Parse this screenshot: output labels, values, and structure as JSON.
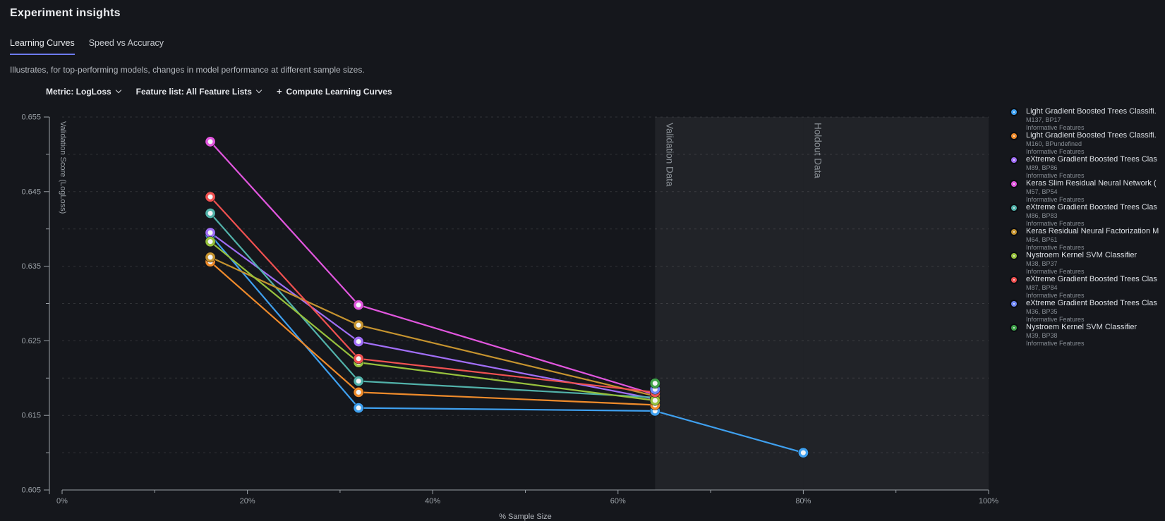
{
  "page": {
    "title": "Experiment insights"
  },
  "tabs": [
    {
      "label": "Learning Curves",
      "active": true
    },
    {
      "label": "Speed vs Accuracy",
      "active": false
    }
  ],
  "subtitle": "Illustrates, for top-performing models, changes in model performance at different sample sizes.",
  "controls": {
    "metric_label": "Metric: LogLoss",
    "feature_list_label": "Feature list: All Feature Lists",
    "compute_icon": "+",
    "compute_button": "Compute Learning Curves"
  },
  "chart_data": {
    "type": "line",
    "title": "",
    "xlabel": "% Sample Size",
    "ylabel": "Validation Score (LogLoss)",
    "xlim": [
      0,
      100
    ],
    "ylim": [
      0.605,
      0.655
    ],
    "grid": "horizontal dashed every 0.005",
    "legend_position": "right",
    "x_ticks_major": [
      0,
      20,
      40,
      60,
      80,
      100
    ],
    "x_tick_labels": [
      "0%",
      "20%",
      "40%",
      "60%",
      "80%",
      "100%"
    ],
    "x_ticks_minor": [
      10,
      30,
      50,
      70,
      90
    ],
    "y_ticks_major": [
      0.655,
      0.645,
      0.635,
      0.625,
      0.615,
      0.605
    ],
    "y_tick_labels": [
      "0.655",
      "0.645",
      "0.635",
      "0.625",
      "0.615",
      "0.605"
    ],
    "y_ticks_minor": [
      0.65,
      0.64,
      0.63,
      0.62,
      0.61
    ],
    "bands": [
      {
        "label": "Validation Data",
        "from": 64,
        "to": 80
      },
      {
        "label": "Holdout Data",
        "from": 80,
        "to": 100
      }
    ],
    "series": [
      {
        "name": "Light Gradient Boosted Trees Classifi.",
        "model_id": "M137, BP17",
        "feature_list": "Informative Features",
        "color": "#3fa0ef",
        "x": [
          16,
          32,
          64,
          80
        ],
        "y": [
          0.6392,
          0.616,
          0.6156,
          0.61
        ]
      },
      {
        "name": "Light Gradient Boosted Trees Classifi.",
        "model_id": "M160, BPundefined",
        "feature_list": "Informative Features",
        "color": "#ef8b2b",
        "x": [
          16,
          32,
          64
        ],
        "y": [
          0.6356,
          0.6181,
          0.6164
        ]
      },
      {
        "name": "eXtreme Gradient Boosted Trees Clas",
        "model_id": "M89, BP86",
        "feature_list": "Informative Features",
        "color": "#a16ef7",
        "x": [
          16,
          32,
          64
        ],
        "y": [
          0.6395,
          0.6249,
          0.6172
        ]
      },
      {
        "name": "Keras Slim Residual Neural Network (",
        "model_id": "M57, BP54",
        "feature_list": "Informative Features",
        "color": "#e156de",
        "x": [
          16,
          32,
          64
        ],
        "y": [
          0.6517,
          0.6298,
          0.6178
        ]
      },
      {
        "name": "eXtreme Gradient Boosted Trees Clas",
        "model_id": "M86, BP83",
        "feature_list": "Informative Features",
        "color": "#52b2aa",
        "x": [
          16,
          32,
          64
        ],
        "y": [
          0.6421,
          0.6196,
          0.6174
        ]
      },
      {
        "name": "Keras Residual Neural Factorization M",
        "model_id": "M64, BP61",
        "feature_list": "Informative Features",
        "color": "#c5932f",
        "x": [
          16,
          32,
          64
        ],
        "y": [
          0.6362,
          0.6271,
          0.6176
        ]
      },
      {
        "name": "Nystroem Kernel SVM Classifier",
        "model_id": "M38, BP37",
        "feature_list": "Informative Features",
        "color": "#97c13d",
        "x": [
          16,
          32,
          64
        ],
        "y": [
          0.6383,
          0.6221,
          0.617
        ]
      },
      {
        "name": "eXtreme Gradient Boosted Trees Clas",
        "model_id": "M87, BP84",
        "feature_list": "Informative Features",
        "color": "#f05151",
        "x": [
          16,
          32,
          64
        ],
        "y": [
          0.6443,
          0.6226,
          0.6181
        ]
      },
      {
        "name": "eXtreme Gradient Boosted Trees Clas",
        "model_id": "M36, BP35",
        "feature_list": "Informative Features",
        "color": "#6f87f5",
        "x": [
          64
        ],
        "y": [
          0.6185
        ]
      },
      {
        "name": "Nystroem Kernel SVM Classifier",
        "model_id": "M39, BP38",
        "feature_list": "Informative Features",
        "color": "#3fa24a",
        "x": [
          64
        ],
        "y": [
          0.6193
        ]
      }
    ]
  }
}
